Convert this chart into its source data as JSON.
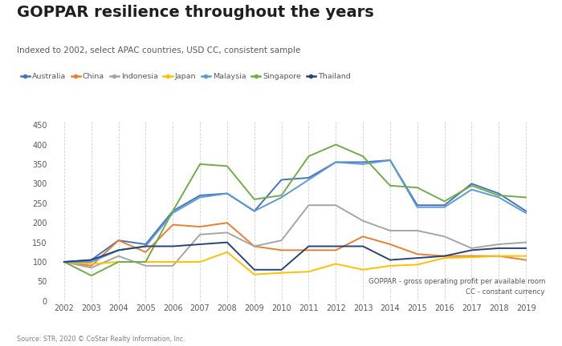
{
  "title": "GOPPAR resilience throughout the years",
  "subtitle": "Indexed to 2002, select APAC countries, USD CC, consistent sample",
  "years": [
    2002,
    2003,
    2004,
    2005,
    2006,
    2007,
    2008,
    2009,
    2010,
    2011,
    2012,
    2013,
    2014,
    2015,
    2016,
    2017,
    2018,
    2019
  ],
  "series": {
    "Australia": {
      "color": "#4472C4",
      "values": [
        100,
        105,
        155,
        145,
        230,
        270,
        275,
        230,
        310,
        315,
        355,
        355,
        360,
        245,
        245,
        300,
        275,
        230
      ]
    },
    "China": {
      "color": "#ED7D31",
      "values": [
        100,
        90,
        155,
        125,
        195,
        190,
        200,
        140,
        130,
        130,
        130,
        165,
        145,
        120,
        115,
        115,
        115,
        105
      ]
    },
    "Indonesia": {
      "color": "#A5A5A5",
      "values": [
        100,
        85,
        115,
        90,
        90,
        170,
        175,
        140,
        155,
        245,
        245,
        205,
        180,
        180,
        165,
        135,
        145,
        150
      ]
    },
    "Japan": {
      "color": "#FFC000",
      "values": [
        100,
        95,
        100,
        100,
        100,
        100,
        125,
        68,
        72,
        75,
        95,
        80,
        90,
        93,
        110,
        112,
        115,
        115
      ]
    },
    "Malaysia": {
      "color": "#5B9BD5",
      "values": [
        100,
        100,
        130,
        140,
        225,
        265,
        275,
        230,
        265,
        310,
        355,
        350,
        360,
        240,
        240,
        285,
        265,
        225
      ]
    },
    "Singapore": {
      "color": "#70AD47",
      "values": [
        100,
        65,
        100,
        100,
        230,
        350,
        345,
        260,
        270,
        370,
        400,
        370,
        295,
        290,
        255,
        295,
        270,
        265
      ]
    },
    "Thailand": {
      "color": "#264478",
      "values": [
        100,
        105,
        130,
        140,
        140,
        145,
        150,
        80,
        80,
        140,
        140,
        140,
        105,
        110,
        115,
        130,
        135,
        135
      ]
    }
  },
  "ylim": [
    0,
    460
  ],
  "yticks": [
    0,
    50,
    100,
    150,
    200,
    250,
    300,
    350,
    400,
    450
  ],
  "source_text": "Source: STR, 2020 © CoStar Realty Information, Inc.",
  "footnote1": "GOPPAR - gross operating profit per available room",
  "footnote2": "CC - constant currency",
  "background_color": "#FFFFFF",
  "grid_color": "#D0D0D0",
  "title_color": "#1F1F1F",
  "subtitle_color": "#595959",
  "axis_color": "#595959"
}
